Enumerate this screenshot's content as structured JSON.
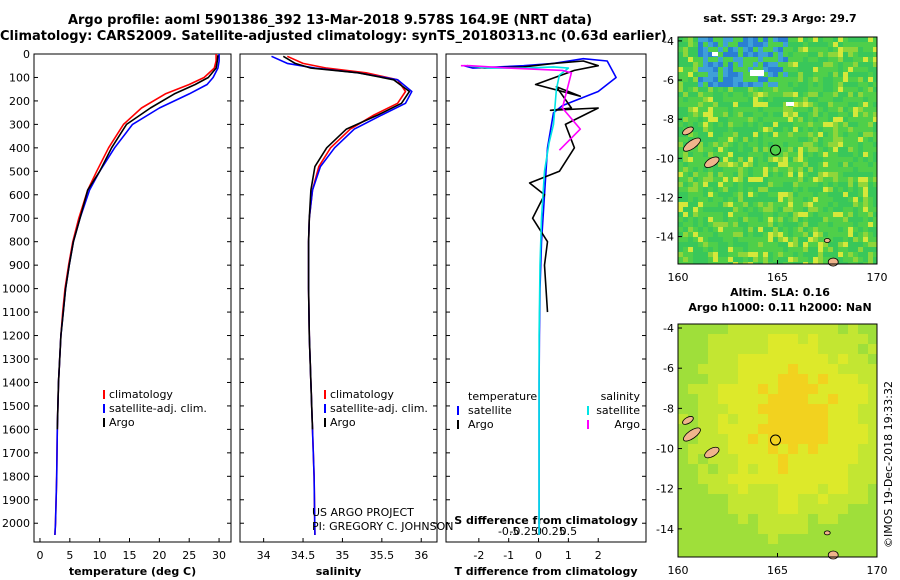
{
  "header": {
    "line1": "Argo profile: aoml 5901386_392 13-Mar-2018 9.578S 164.9E (NRT data)",
    "line2": "Climatology: CARS2009. Satellite-adjusted climatology: synTS_20180313.nc (0.63d earlier)"
  },
  "credits": {
    "project": "US ARGO PROJECT",
    "pi": "PI: GREGORY C. JOHNSON",
    "imos": "©IMOS 19-Dec-2018 19:33:32"
  },
  "colors": {
    "climatology": "#ff0000",
    "satellite": "#0000ff",
    "argo": "#000000",
    "sal_satellite": "#00e5e5",
    "sal_argo": "#ff00ff"
  },
  "chart_data": [
    {
      "type": "line",
      "xlabel": "temperature (deg C)",
      "xlim": [
        -1,
        32
      ],
      "xticks": [
        0,
        5,
        10,
        15,
        20,
        25,
        30
      ],
      "ylim": [
        2080,
        0
      ],
      "yticks": [
        0,
        100,
        200,
        300,
        400,
        500,
        600,
        700,
        800,
        900,
        1000,
        1100,
        1200,
        1300,
        1400,
        1500,
        1600,
        1700,
        1800,
        1900,
        2000
      ],
      "legend": [
        "climatology",
        "satellite-adj. clim.",
        "Argo"
      ],
      "series": [
        {
          "name": "climatology",
          "x": [
            29.5,
            29.5,
            29.2,
            27.5,
            25,
            21,
            17,
            14,
            11.5,
            9.5,
            8,
            6.5,
            5.5,
            4.8,
            4.2,
            3.8,
            3.5,
            3.3,
            3.1,
            3.0,
            2.9,
            2.8,
            2.6,
            2.5
          ],
          "y": [
            0,
            30,
            60,
            100,
            130,
            170,
            230,
            300,
            400,
            500,
            580,
            700,
            800,
            900,
            1000,
            1100,
            1200,
            1300,
            1400,
            1500,
            1600,
            1800,
            2000,
            2050
          ]
        },
        {
          "name": "satellite-adj. clim.",
          "x": [
            30,
            30,
            29.8,
            29,
            28,
            25,
            20,
            15.5,
            12.5,
            10,
            8.3,
            6.7,
            5.6,
            4.9,
            4.3,
            3.9,
            3.5,
            3.3,
            3.1,
            3.0,
            2.9,
            2.8,
            2.6,
            2.5
          ],
          "y": [
            0,
            30,
            60,
            100,
            130,
            170,
            230,
            300,
            400,
            500,
            580,
            700,
            800,
            900,
            1000,
            1100,
            1200,
            1300,
            1400,
            1500,
            1600,
            1800,
            2000,
            2050
          ]
        },
        {
          "name": "Argo",
          "x": [
            29.8,
            29.7,
            29.5,
            28.2,
            26,
            22.5,
            18.5,
            14.5,
            12,
            10,
            8,
            6.7,
            5.6,
            4.9,
            4.3,
            3.9,
            3.5,
            3.3,
            3.1,
            3.0,
            2.9
          ],
          "y": [
            5,
            30,
            60,
            100,
            130,
            170,
            230,
            300,
            400,
            500,
            580,
            700,
            800,
            900,
            1000,
            1100,
            1200,
            1300,
            1400,
            1500,
            1600
          ]
        }
      ]
    },
    {
      "type": "line",
      "xlabel": "salinity",
      "xlim": [
        33.7,
        36.2
      ],
      "xticks": [
        34,
        34.5,
        35,
        35.5,
        36
      ],
      "xticklabels": [
        "34",
        "34.5",
        "35",
        "35.5",
        "36"
      ],
      "ylim": [
        2080,
        0
      ],
      "legend": [
        "climatology",
        "satellite-adj. clim.",
        "Argo"
      ],
      "series": [
        {
          "name": "climatology",
          "x": [
            34.3,
            34.5,
            34.8,
            35.3,
            35.7,
            35.8,
            35.7,
            35.4,
            35.1,
            34.85,
            34.7,
            34.62,
            34.58,
            34.57,
            34.57,
            34.58,
            34.6,
            34.62,
            34.64,
            34.65
          ],
          "y": [
            10,
            40,
            60,
            80,
            110,
            160,
            210,
            260,
            320,
            400,
            480,
            580,
            700,
            800,
            1000,
            1200,
            1400,
            1600,
            1800,
            2050
          ]
        },
        {
          "name": "satellite-adj. clim.",
          "x": [
            34.1,
            34.3,
            34.65,
            35.2,
            35.7,
            35.88,
            35.8,
            35.5,
            35.15,
            34.9,
            34.72,
            34.62,
            34.58,
            34.57,
            34.57,
            34.58,
            34.6,
            34.62,
            34.64,
            34.65
          ],
          "y": [
            10,
            40,
            60,
            80,
            110,
            160,
            210,
            260,
            320,
            400,
            480,
            580,
            700,
            800,
            1000,
            1200,
            1400,
            1600,
            1800,
            2050
          ]
        },
        {
          "name": "Argo",
          "x": [
            34.25,
            34.4,
            34.6,
            35.2,
            35.65,
            35.85,
            35.75,
            35.45,
            35.05,
            34.8,
            34.65,
            34.6,
            34.58,
            34.57,
            34.57,
            34.58,
            34.6,
            34.62
          ],
          "y": [
            10,
            40,
            60,
            80,
            110,
            160,
            210,
            260,
            320,
            400,
            480,
            580,
            700,
            800,
            1000,
            1200,
            1400,
            1600
          ]
        }
      ]
    },
    {
      "type": "line",
      "xlabel": "T difference from climatology",
      "xlabel_top": "S difference from climatology",
      "xlim": [
        -3.1,
        3.6
      ],
      "xticks": [
        -2,
        -1,
        0,
        1,
        2
      ],
      "xticklabels": [
        "-2",
        "-1",
        "0",
        "1",
        "2"
      ],
      "xticks_top": [
        -1,
        -0.5,
        0,
        0.5,
        1
      ],
      "xticklabels_top": [
        "-0.5",
        "-0.25",
        "0",
        "0.25",
        "0.5"
      ],
      "ylim": [
        2080,
        0
      ],
      "legend_temperature": {
        "title": "temperature",
        "items": [
          "satellite",
          "Argo"
        ]
      },
      "legend_salinity": {
        "title": "salinity",
        "items": [
          "satellite",
          "Argo"
        ]
      },
      "series": [
        {
          "name": "satellite",
          "group": "temperature",
          "x": [
            -2.5,
            -2.2,
            -0.5,
            0.5,
            1.5,
            2.3,
            2.6,
            2,
            1.2,
            0.8,
            0.5,
            0.3,
            0.2,
            0.1,
            0.05,
            0.03,
            0.02,
            0.02,
            0.02,
            0.02,
            0.02,
            0.02
          ],
          "y": [
            50,
            60,
            50,
            40,
            20,
            30,
            100,
            160,
            200,
            220,
            250,
            400,
            600,
            800,
            1000,
            1200,
            1400,
            1600,
            1800,
            1900,
            2000,
            2050
          ]
        },
        {
          "name": "Argo",
          "group": "temperature",
          "x": [
            -2.4,
            -1.8,
            -0.5,
            0.5,
            1.5,
            2,
            1.2,
            -0.1,
            1.4,
            0.6,
            1.1,
            0.4,
            2,
            0.9,
            1.2,
            0.7,
            -0.3,
            0.2,
            -0.2,
            0.3,
            0.2,
            0.3
          ],
          "y": [
            50,
            60,
            55,
            40,
            30,
            50,
            70,
            130,
            180,
            140,
            230,
            240,
            230,
            300,
            400,
            500,
            550,
            600,
            700,
            800,
            900,
            1100
          ]
        },
        {
          "name": "satellite",
          "group": "salinity",
          "x": [
            -2.4,
            -1.7,
            -0.4,
            0.5,
            1.0,
            0.7,
            0.6,
            0.5,
            0.35,
            0.2,
            0.1,
            0.05,
            0.02,
            0.02,
            0.02
          ],
          "y": [
            50,
            60,
            60,
            55,
            60,
            90,
            150,
            300,
            380,
            500,
            700,
            900,
            1200,
            1600,
            2050
          ]
        },
        {
          "name": "Argo",
          "group": "salinity",
          "x": [
            -2.6,
            -2.3,
            -1.0,
            0.8,
            1.1,
            0.8,
            1.4,
            0.7
          ],
          "y": [
            50,
            50,
            60,
            70,
            80,
            230,
            320,
            410
          ]
        }
      ]
    },
    {
      "type": "heatmap",
      "title": "sat. SST: 29.3 Argo: 29.7",
      "x_range": [
        160,
        170
      ],
      "y_range": [
        -15.4,
        -3.8
      ],
      "xticks": [
        160,
        165,
        170
      ],
      "yticks": [
        -4,
        -6,
        -8,
        -10,
        -12,
        -14
      ],
      "marker": {
        "lon": 164.9,
        "lat": -9.578
      }
    },
    {
      "type": "heatmap",
      "title_line1": "Altim. SLA: 0.16",
      "title_line2": "Argo h1000: 0.11 h2000: NaN",
      "x_range": [
        160,
        170
      ],
      "y_range": [
        -15.4,
        -3.8
      ],
      "xticks": [
        160,
        165,
        170
      ],
      "yticks": [
        -4,
        -6,
        -8,
        -10,
        -12,
        -14
      ],
      "marker": {
        "lon": 164.9,
        "lat": -9.578
      }
    }
  ]
}
